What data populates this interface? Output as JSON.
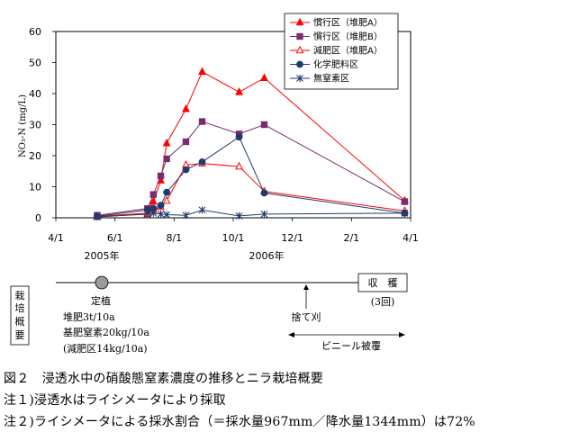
{
  "chart_data": {
    "type": "line",
    "ylabel": "NO₃-N (mg/L)",
    "xlabel": "",
    "ylim": [
      0,
      60
    ],
    "yticks": [
      0,
      10,
      20,
      30,
      40,
      50,
      60
    ],
    "x_ticks": [
      "4/1",
      "6/1",
      "8/1",
      "10/1",
      "12/1",
      "2/1",
      "4/1"
    ],
    "x_years": [
      "2005年",
      "2006年"
    ],
    "legend_position": "top-right",
    "grid": false,
    "series": [
      {
        "name": "慣行区（堆肥A）",
        "color": "#ff0000",
        "marker": "triangle-filled",
        "x": [
          1.4,
          3.1,
          3.3,
          3.55,
          3.75,
          4.4,
          4.95,
          6.2,
          7.05,
          11.8
        ],
        "y": [
          0.5,
          1.5,
          5.2,
          12,
          24,
          35,
          47,
          40.5,
          45,
          5.5
        ]
      },
      {
        "name": "慣行区（堆肥B）",
        "color": "#7b2c6e",
        "marker": "square-filled",
        "x": [
          1.4,
          3.1,
          3.3,
          3.55,
          3.75,
          4.4,
          4.95,
          6.2,
          7.05,
          11.8
        ],
        "y": [
          0.8,
          3,
          7.5,
          13.5,
          19,
          24.5,
          31,
          27,
          30,
          5.2
        ]
      },
      {
        "name": "減肥区（堆肥A）",
        "color": "#ff0000",
        "marker": "triangle-open",
        "x": [
          1.4,
          3.1,
          3.3,
          3.55,
          3.75,
          4.4,
          4.95,
          6.2,
          7.05,
          11.8
        ],
        "y": [
          0.3,
          1.2,
          2.5,
          3.5,
          5.5,
          17,
          17.5,
          16.5,
          8.5,
          2.2
        ]
      },
      {
        "name": "化学肥料区",
        "color": "#1f3b6e",
        "marker": "circle-filled",
        "x": [
          1.4,
          3.1,
          3.3,
          3.55,
          3.75,
          4.4,
          4.95,
          6.2,
          7.05,
          11.8
        ],
        "y": [
          0.5,
          2.5,
          3,
          4,
          8.2,
          15.5,
          18,
          26,
          8,
          1.5
        ]
      },
      {
        "name": "無窒素区",
        "color": "#1f3b6e",
        "marker": "star",
        "x": [
          1.4,
          3.1,
          3.3,
          3.55,
          3.75,
          4.4,
          4.95,
          6.2,
          7.05,
          11.8
        ],
        "y": [
          0.3,
          1.2,
          1.5,
          1.2,
          1.0,
          0.8,
          2.5,
          0.6,
          1.2,
          1.5
        ]
      }
    ]
  },
  "timeline": {
    "side_label": "栽培概要",
    "planting_label": "定植",
    "fert_lines": [
      "堆肥3t/10a",
      "基肥窒素20kg/10a",
      "(減肥区14kg/10a)"
    ],
    "harvest_label": "収　穫",
    "harvest_count": "(3回)",
    "sutegari_label": "捨て刈",
    "vinyl_label": "ビニール被覆"
  },
  "captions": [
    "図２　浸透水中の硝酸態窒素濃度の推移とニラ栽培概要",
    "注１)浸透水はライシメータにより採取",
    "注２)ライシメータによる採水割合（＝採水量967mm／降水量1344mm）は72%"
  ]
}
